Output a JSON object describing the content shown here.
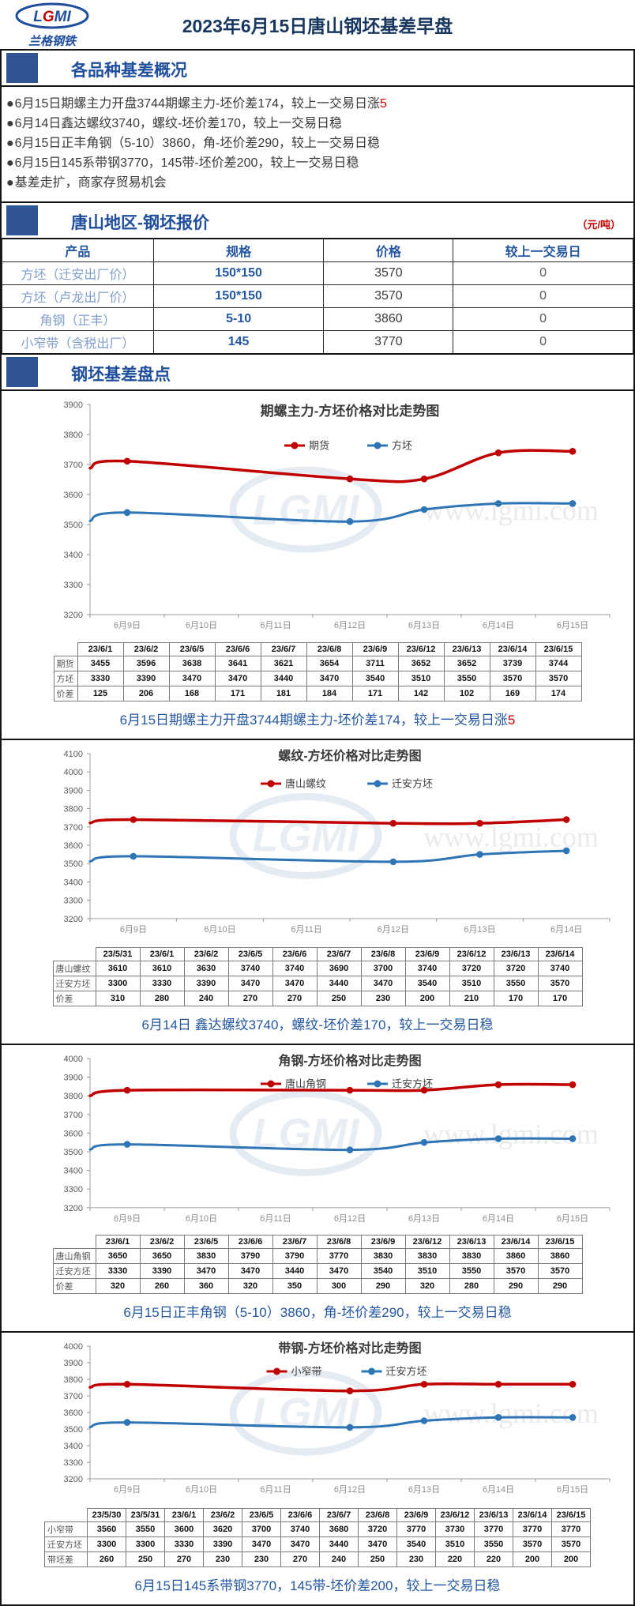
{
  "colors": {
    "accent_red": "#c00000",
    "accent_blue": "#2e75b6",
    "heading_blue": "#1f4e9c",
    "title_navy": "#17375e",
    "caption_blue": "#2457a0",
    "section_block": "#2f5597"
  },
  "header": {
    "logo": {
      "l": "L",
      "g": "G",
      "mi": "MI",
      "name": "兰格钢铁"
    },
    "title": "2023年6月15日唐山钢坯基差早盘"
  },
  "sections": {
    "overview": {
      "title": "各品种基差概况"
    },
    "quotes": {
      "title": "唐山地区-钢坯报价",
      "unit": "（元/吨）"
    },
    "basis": {
      "title": "钢坯基差盘点"
    }
  },
  "bullet_char": "●",
  "bullets": [
    {
      "text": "6月15日期螺主力开盘3744期螺主力-坯价差174，较上一交易日涨",
      "highlight": "5"
    },
    {
      "text": "6月14日鑫达螺纹3740，螺纹-坯价差170，较上一交易日稳",
      "highlight": ""
    },
    {
      "text": "6月15日正丰角钢（5-10）3860，角-坯价差290，较上一交易日稳",
      "highlight": ""
    },
    {
      "text": "6月15日145系带钢3770，145带-坯价差200，较上一交易日稳",
      "highlight": ""
    },
    {
      "text": "基差走扩，商家存贸易机会",
      "highlight": ""
    }
  ],
  "price_table": {
    "headers": [
      "产品",
      "规格",
      "价格",
      "较上一交易日"
    ],
    "rows": [
      {
        "product": "方坯（迁安出厂价）",
        "spec": "150*150",
        "price": "3570",
        "delta": "0"
      },
      {
        "product": "方坯（卢龙出厂价）",
        "spec": "150*150",
        "price": "3570",
        "delta": "0"
      },
      {
        "product": "角钢（正丰）",
        "spec": "5-10",
        "price": "3860",
        "delta": "0"
      },
      {
        "product": "小窄带（含税出厂）",
        "spec": "145",
        "price": "3770",
        "delta": "0"
      }
    ]
  },
  "watermark": {
    "logo": "LGMI",
    "site": "www.lgmi.com"
  },
  "chart_data": [
    {
      "type": "line",
      "title": "期螺主力-方坯价格对比走势图",
      "y_ticks": [
        3900,
        3800,
        3700,
        3600,
        3500,
        3400,
        3300,
        3200
      ],
      "x_labels": [
        "6月9日",
        "6月10日",
        "6月11日",
        "6月12日",
        "6月13日",
        "6月14日",
        "6月15日"
      ],
      "series": [
        {
          "name": "期货",
          "color": "#c00000",
          "edge": 3688,
          "points": [
            [
              0,
              3711
            ],
            [
              3,
              3652
            ],
            [
              4,
              3652
            ],
            [
              5,
              3739
            ],
            [
              6,
              3744
            ]
          ]
        },
        {
          "name": "方坯",
          "color": "#2e75b6",
          "edge": 3512,
          "points": [
            [
              0,
              3540
            ],
            [
              3,
              3510
            ],
            [
              4,
              3550
            ],
            [
              5,
              3570
            ],
            [
              6,
              3570
            ]
          ]
        }
      ],
      "table": {
        "dates": [
          "23/6/1",
          "23/6/2",
          "23/6/5",
          "23/6/6",
          "23/6/7",
          "23/6/8",
          "23/6/9",
          "23/6/12",
          "23/6/13",
          "23/6/14",
          "23/6/15"
        ],
        "rows": [
          {
            "label": "期货",
            "values": [
              3455,
              3596,
              3638,
              3641,
              3621,
              3654,
              3711,
              3652,
              3652,
              3739,
              3744
            ]
          },
          {
            "label": "方坯",
            "values": [
              3330,
              3390,
              3470,
              3470,
              3440,
              3470,
              3540,
              3510,
              3550,
              3570,
              3570
            ]
          },
          {
            "label": "价差",
            "values": [
              125,
              206,
              168,
              171,
              181,
              184,
              171,
              142,
              102,
              169,
              174
            ]
          }
        ]
      },
      "caption": {
        "text": "6月15日期螺主力开盘3744期螺主力-坯价差174，较上一交易日涨",
        "highlight": "5"
      }
    },
    {
      "type": "line",
      "title": "螺纹-方坯价格对比走势图",
      "y_ticks": [
        4100,
        4000,
        3900,
        3800,
        3700,
        3600,
        3500,
        3400,
        3300,
        3200
      ],
      "x_labels": [
        "6月9日",
        "6月10日",
        "6月11日",
        "6月12日",
        "6月13日",
        "6月14日"
      ],
      "series": [
        {
          "name": "唐山螺纹",
          "color": "#c00000",
          "edge": 3722,
          "points": [
            [
              0,
              3740
            ],
            [
              3,
              3720
            ],
            [
              4,
              3720
            ],
            [
              5,
              3740
            ]
          ]
        },
        {
          "name": "迁安方坯",
          "color": "#2e75b6",
          "edge": 3512,
          "points": [
            [
              0,
              3540
            ],
            [
              3,
              3510
            ],
            [
              4,
              3550
            ],
            [
              5,
              3570
            ]
          ]
        }
      ],
      "table": {
        "dates": [
          "23/5/31",
          "23/6/1",
          "23/6/2",
          "23/6/5",
          "23/6/6",
          "23/6/7",
          "23/6/8",
          "23/6/9",
          "23/6/12",
          "23/6/13",
          "23/6/14"
        ],
        "rows": [
          {
            "label": "唐山螺纹",
            "values": [
              3610,
              3610,
              3630,
              3740,
              3740,
              3690,
              3700,
              3740,
              3720,
              3720,
              3740
            ]
          },
          {
            "label": "迁安方坯",
            "values": [
              3300,
              3330,
              3390,
              3470,
              3470,
              3440,
              3470,
              3540,
              3510,
              3550,
              3570
            ]
          },
          {
            "label": "价差",
            "values": [
              310,
              280,
              240,
              270,
              270,
              250,
              230,
              200,
              210,
              170,
              170
            ]
          }
        ]
      },
      "caption": {
        "text": "6月14日 鑫达螺纹3740，螺纹-坯价差170，较上一交易日稳",
        "highlight": ""
      }
    },
    {
      "type": "line",
      "title": "角钢-方坯价格对比走势图",
      "y_ticks": [
        4000,
        3900,
        3800,
        3700,
        3600,
        3500,
        3400,
        3300,
        3200
      ],
      "x_labels": [
        "6月9日",
        "6月10日",
        "6月11日",
        "6月12日",
        "6月13日",
        "6月14日",
        "6月15日"
      ],
      "series": [
        {
          "name": "唐山角钢",
          "color": "#c00000",
          "edge": 3800,
          "points": [
            [
              0,
              3830
            ],
            [
              3,
              3830
            ],
            [
              4,
              3830
            ],
            [
              5,
              3860
            ],
            [
              6,
              3860
            ]
          ]
        },
        {
          "name": "迁安方坯",
          "color": "#2e75b6",
          "edge": 3512,
          "points": [
            [
              0,
              3540
            ],
            [
              3,
              3510
            ],
            [
              4,
              3550
            ],
            [
              5,
              3570
            ],
            [
              6,
              3570
            ]
          ]
        }
      ],
      "table": {
        "dates": [
          "23/6/1",
          "23/6/2",
          "23/6/5",
          "23/6/6",
          "23/6/7",
          "23/6/8",
          "23/6/9",
          "23/6/12",
          "23/6/13",
          "23/6/14",
          "23/6/15"
        ],
        "rows": [
          {
            "label": "唐山角钢",
            "values": [
              3650,
              3650,
              3830,
              3790,
              3790,
              3770,
              3830,
              3830,
              3830,
              3860,
              3860
            ]
          },
          {
            "label": "迁安方坯",
            "values": [
              3330,
              3390,
              3470,
              3470,
              3440,
              3470,
              3540,
              3510,
              3550,
              3570,
              3570
            ]
          },
          {
            "label": "价差",
            "values": [
              320,
              260,
              360,
              320,
              350,
              300,
              290,
              320,
              280,
              290,
              290
            ]
          }
        ]
      },
      "caption": {
        "text": "6月15日正丰角钢（5-10）3860，角-坯价差290，较上一交易日稳",
        "highlight": ""
      }
    },
    {
      "type": "line",
      "title": "带钢-方坯价格对比走势图",
      "y_ticks": [
        4000,
        3900,
        3800,
        3700,
        3600,
        3500,
        3400,
        3300,
        3200
      ],
      "x_labels": [
        "6月9日",
        "6月10日",
        "6月11日",
        "6月12日",
        "6月13日",
        "6月14日",
        "6月15日"
      ],
      "series": [
        {
          "name": "小窄带",
          "color": "#c00000",
          "edge": 3752,
          "points": [
            [
              0,
              3770
            ],
            [
              3,
              3730
            ],
            [
              4,
              3770
            ],
            [
              5,
              3770
            ],
            [
              6,
              3770
            ]
          ]
        },
        {
          "name": "迁安方坯",
          "color": "#2e75b6",
          "edge": 3512,
          "points": [
            [
              0,
              3540
            ],
            [
              3,
              3510
            ],
            [
              4,
              3550
            ],
            [
              5,
              3570
            ],
            [
              6,
              3570
            ]
          ]
        }
      ],
      "table": {
        "dates": [
          "23/5/30",
          "23/5/31",
          "23/6/1",
          "23/6/2",
          "23/6/5",
          "23/6/6",
          "23/6/7",
          "23/6/8",
          "23/6/9",
          "23/6/12",
          "23/6/13",
          "23/6/14",
          "23/6/15"
        ],
        "rows": [
          {
            "label": "小窄带",
            "values": [
              3560,
              3550,
              3600,
              3620,
              3700,
              3740,
              3680,
              3720,
              3770,
              3730,
              3770,
              3770,
              3770
            ]
          },
          {
            "label": "迁安方坯",
            "values": [
              3300,
              3300,
              3330,
              3390,
              3470,
              3470,
              3440,
              3470,
              3540,
              3510,
              3550,
              3570,
              3570
            ]
          },
          {
            "label": "带坯差",
            "values": [
              260,
              250,
              270,
              230,
              230,
              270,
              240,
              250,
              230,
              220,
              220,
              200,
              200
            ]
          }
        ]
      },
      "caption": {
        "text": "6月15日145系带钢3770，145带-坯价差200，较上一交易日稳",
        "highlight": ""
      }
    }
  ]
}
